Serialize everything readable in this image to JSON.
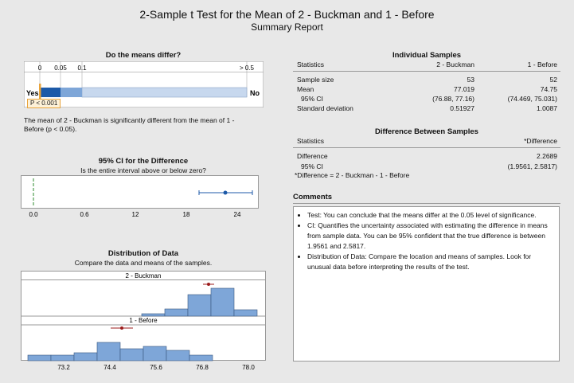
{
  "header": {
    "title": "2-Sample t Test for the Mean of 2 - Buckman and 1 - Before",
    "subtitle": "Summary Report"
  },
  "means_differ": {
    "heading": "Do the means differ?",
    "scale_labels": [
      "0",
      "0.05",
      "0.1",
      "> 0.5"
    ],
    "yes_label": "Yes",
    "no_label": "No",
    "p_label": "P < 0.001",
    "conclusion": "The mean of 2 - Buckman is significantly different from the mean of 1 - Before (p < 0.05)."
  },
  "ci_panel": {
    "heading": "95% CI for the Difference",
    "question": "Is the entire interval above or below zero?",
    "difference": 2.2689,
    "ci": [
      1.9561,
      2.5817
    ],
    "axis_labels": [
      "0.0",
      "0.6",
      "12",
      "18",
      "24"
    ]
  },
  "distribution": {
    "heading": "Distribution of Data",
    "subheading": "Compare the data and means of the samples.",
    "group1_label": "2 - Buckman",
    "group2_label": "1 - Before",
    "axis_labels": [
      "73.2",
      "74.4",
      "75.6",
      "76.8",
      "78.0"
    ]
  },
  "individual_samples": {
    "heading": "Individual Samples",
    "col_statistics": "Statistics",
    "col_a": "2 - Buckman",
    "col_b": "1 - Before",
    "rows": [
      {
        "label": "Sample size",
        "a": "53",
        "b": "52"
      },
      {
        "label": "Mean",
        "a": "77.019",
        "b": "74.75"
      },
      {
        "label": "95% CI",
        "a": "(76.88, 77.16)",
        "b": "(74.469, 75.031)"
      },
      {
        "label": "Standard deviation",
        "a": "0.51927",
        "b": "1.0087"
      }
    ]
  },
  "difference_between": {
    "heading": "Difference Between Samples",
    "col_statistics": "Statistics",
    "col_diff": "*Difference",
    "rows": [
      {
        "label": "Difference",
        "value": "2.2689"
      },
      {
        "label": "95% CI",
        "value": "(1.9561, 2.5817)"
      }
    ],
    "footnote": "*Difference = 2 - Buckman - 1 - Before"
  },
  "comments": {
    "heading": "Comments",
    "items": [
      "Test: You can conclude that the means differ at the 0.05 level of significance.",
      "CI: Quantifies the uncertainty associated with estimating the difference in means from sample data. You can be 95% confident that the true difference is between 1.9561 and 2.5817.",
      "Distribution of Data: Compare the location and means of samples. Look for unusual data before interpreting the results of the test."
    ]
  },
  "colors": {
    "bar_blue": "#7ea6d8",
    "dark_blue": "#1d5aa8",
    "mean_red": "#9b1b1b",
    "green": "#2e8b2e",
    "orange": "#e8a33a"
  }
}
